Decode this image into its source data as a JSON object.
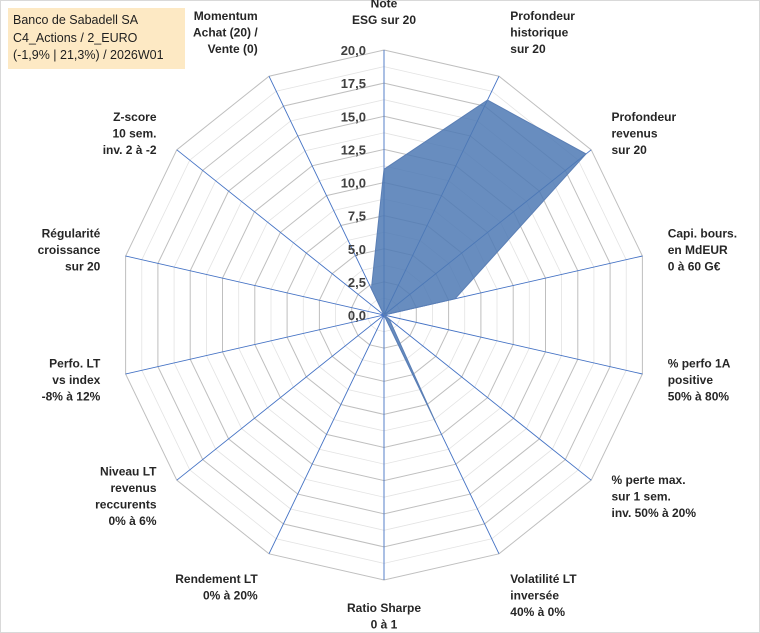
{
  "title_lines": [
    "Banco de Sabadell SA",
    "C4_Actions / 2_EURO",
    "(-1,9% | 21,3%) / 2026W01"
  ],
  "chart_data": {
    "type": "radar",
    "rmax": 20,
    "ticks": [
      "0,0",
      "2,5",
      "5,0",
      "7,5",
      "10,0",
      "12,5",
      "15,0",
      "17,5",
      "20,0"
    ],
    "tick_values": [
      0,
      2.5,
      5,
      7.5,
      10,
      12.5,
      15,
      17.5,
      20
    ],
    "fill_color": "#4e79b4",
    "axis_color": "#4472c4",
    "axes": [
      {
        "label_lines": [
          "Note",
          "ESG sur 20"
        ],
        "value": 11
      },
      {
        "label_lines": [
          "Profondeur",
          "historique",
          "sur 20"
        ],
        "value": 18
      },
      {
        "label_lines": [
          "Profondeur",
          "revenus",
          "sur 20"
        ],
        "value": 19.5
      },
      {
        "label_lines": [
          "Capi. bours.",
          "en MdEUR",
          "0 à 60 G€"
        ],
        "value": 5.5
      },
      {
        "label_lines": [
          "% perfo 1A",
          "positive",
          "50% à 80%"
        ],
        "value": 0
      },
      {
        "label_lines": [
          "% perte max.",
          "sur 1 sem.",
          "inv. 50% à 20%"
        ],
        "value": 0.5
      },
      {
        "label_lines": [
          "Volatilité LT",
          "inversée",
          "40% à 0%"
        ],
        "value": 9
      },
      {
        "label_lines": [
          "Ratio Sharpe",
          "0 à 1"
        ],
        "value": 0
      },
      {
        "label_lines": [
          "Rendement LT",
          "0% à 20%"
        ],
        "value": 0
      },
      {
        "label_lines": [
          "Niveau LT",
          "revenus",
          "reccurents",
          "0% à 6%"
        ],
        "value": 0
      },
      {
        "label_lines": [
          "Perfo. LT",
          "vs index",
          "-8% à 12%"
        ],
        "value": 0
      },
      {
        "label_lines": [
          "Régularité",
          "croissance",
          "sur 20"
        ],
        "value": 0
      },
      {
        "label_lines": [
          "Z-score",
          "10 sem.",
          "inv. 2 à -2"
        ],
        "value": 0
      },
      {
        "label_lines": [
          "Momentum",
          "Achat (20) /",
          "Vente (0)"
        ],
        "value": 2.2
      }
    ]
  }
}
